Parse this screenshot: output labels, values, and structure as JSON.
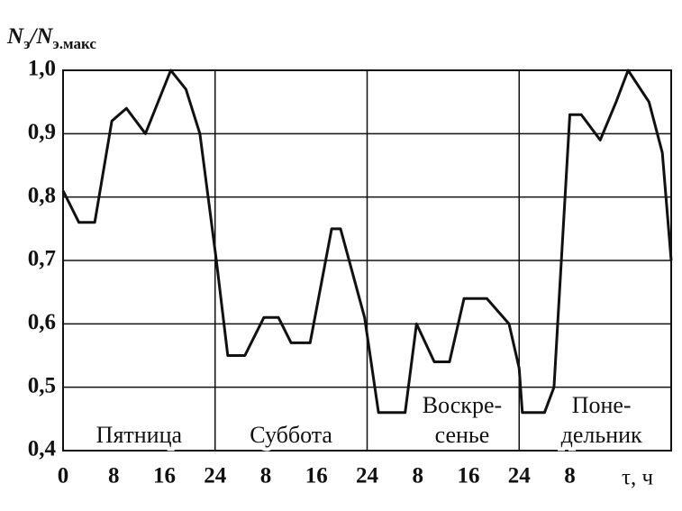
{
  "chart_data": {
    "type": "line",
    "ylabel": [
      "N",
      "э",
      "/N",
      "э.макс"
    ],
    "xlabel": "τ, ч",
    "x": [
      0,
      2.5,
      5,
      7.7,
      10,
      13,
      17,
      19.4,
      21.6,
      24.2,
      26,
      28.7,
      31.7,
      34,
      36,
      39,
      42.4,
      43.8,
      47.6,
      49.8,
      54,
      55.8,
      58.6,
      61,
      63.3,
      66.9,
      70.4,
      72,
      72.5,
      76,
      77.5,
      80,
      81.8,
      84.8,
      87.3,
      89.2,
      92.5,
      94.6,
      96
    ],
    "values": [
      0.81,
      0.76,
      0.76,
      0.92,
      0.94,
      0.9,
      1.0,
      0.97,
      0.9,
      0.7,
      0.55,
      0.55,
      0.61,
      0.61,
      0.57,
      0.57,
      0.75,
      0.75,
      0.61,
      0.46,
      0.46,
      0.6,
      0.54,
      0.54,
      0.64,
      0.64,
      0.6,
      0.53,
      0.46,
      0.46,
      0.5,
      0.93,
      0.93,
      0.89,
      0.95,
      1.0,
      0.95,
      0.87,
      0.7
    ],
    "color": "#111111",
    "xlim": [
      0,
      96
    ],
    "ylim": [
      0.4,
      1.0
    ],
    "xticks": [
      0,
      8,
      16,
      24,
      {
        "value": 32,
        "label": "8"
      },
      {
        "value": 40,
        "label": "16"
      },
      {
        "value": 48,
        "label": "24"
      },
      {
        "value": 56,
        "label": "8"
      },
      {
        "value": 64,
        "label": "16"
      },
      {
        "value": 72,
        "label": "24"
      },
      {
        "value": 80,
        "label": "8"
      }
    ],
    "yticks": [
      {
        "value": 0.4,
        "label": "0,4"
      },
      {
        "value": 0.5,
        "label": "0,5"
      },
      {
        "value": 0.6,
        "label": "0,6"
      },
      {
        "value": 0.7,
        "label": "0,7"
      },
      {
        "value": 0.8,
        "label": "0,8"
      },
      {
        "value": 0.9,
        "label": "0,9"
      },
      {
        "value": 1.0,
        "label": "1,0"
      }
    ],
    "day_boundaries": [
      24,
      48,
      72
    ],
    "grid": true,
    "annotations": [
      {
        "x": 12,
        "lines": [
          "Пятница"
        ]
      },
      {
        "x": 36,
        "lines": [
          "Суббота"
        ]
      },
      {
        "x": 63,
        "lines": [
          "Воскре-",
          "сенье"
        ]
      },
      {
        "x": 85,
        "lines": [
          "Поне-",
          "дельник"
        ]
      }
    ]
  }
}
